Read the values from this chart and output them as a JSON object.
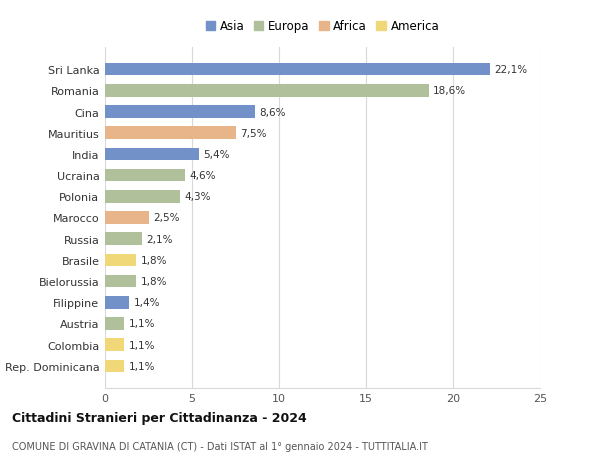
{
  "categories": [
    "Sri Lanka",
    "Romania",
    "Cina",
    "Mauritius",
    "India",
    "Ucraina",
    "Polonia",
    "Marocco",
    "Russia",
    "Brasile",
    "Bielorussia",
    "Filippine",
    "Austria",
    "Colombia",
    "Rep. Dominicana"
  ],
  "values": [
    22.1,
    18.6,
    8.6,
    7.5,
    5.4,
    4.6,
    4.3,
    2.5,
    2.1,
    1.8,
    1.8,
    1.4,
    1.1,
    1.1,
    1.1
  ],
  "labels": [
    "22,1%",
    "18,6%",
    "8,6%",
    "7,5%",
    "5,4%",
    "4,6%",
    "4,3%",
    "2,5%",
    "2,1%",
    "1,8%",
    "1,8%",
    "1,4%",
    "1,1%",
    "1,1%",
    "1,1%"
  ],
  "continents": [
    "Asia",
    "Europa",
    "Asia",
    "Africa",
    "Asia",
    "Europa",
    "Europa",
    "Africa",
    "Europa",
    "America",
    "Europa",
    "Asia",
    "Europa",
    "America",
    "America"
  ],
  "continent_colors": {
    "Asia": "#7191c8",
    "Europa": "#afc09a",
    "Africa": "#e8b48a",
    "America": "#f0d878"
  },
  "legend_order": [
    "Asia",
    "Europa",
    "Africa",
    "America"
  ],
  "title": "Cittadini Stranieri per Cittadinanza - 2024",
  "subtitle": "COMUNE DI GRAVINA DI CATANIA (CT) - Dati ISTAT al 1° gennaio 2024 - TUTTITALIA.IT",
  "xlim": [
    0,
    25
  ],
  "xticks": [
    0,
    5,
    10,
    15,
    20,
    25
  ],
  "background_color": "#ffffff",
  "grid_color": "#d8d8d8"
}
